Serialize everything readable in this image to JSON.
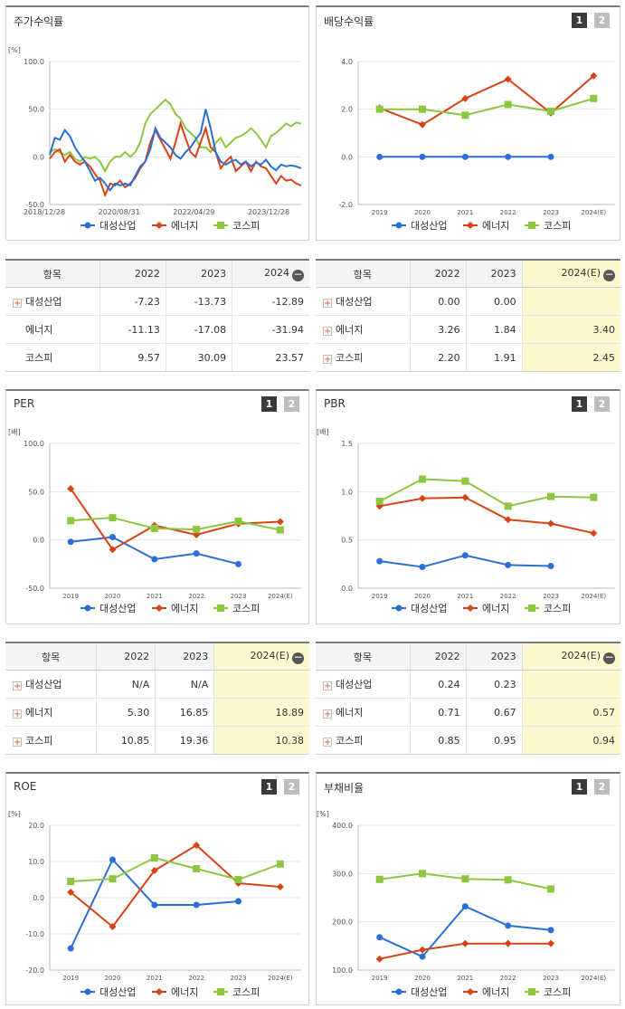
{
  "colors": {
    "company": "#2b6fd6",
    "energy": "#d84315",
    "kospi": "#8dc63f",
    "grid": "#e6e6e6",
    "axis": "#bbbbbb",
    "estimate_bg": "#fdf8d0"
  },
  "legend": {
    "company": "대성산업",
    "energy": "에너지",
    "kospi": "코스피"
  },
  "chart_data": [
    {
      "id": "stock",
      "type": "line",
      "title": "주가수익률",
      "unit": "[%]",
      "ylim": [
        -50,
        100
      ],
      "yticks": [
        "100.0",
        "50.0",
        "0.0",
        "-50.0"
      ],
      "xticks": [
        "2018/12/28",
        "2020/08/31",
        "2022/04/29",
        "2023/12/28"
      ],
      "x": [
        0,
        0.02,
        0.04,
        0.06,
        0.08,
        0.1,
        0.12,
        0.14,
        0.16,
        0.18,
        0.2,
        0.22,
        0.24,
        0.26,
        0.28,
        0.3,
        0.32,
        0.34,
        0.36,
        0.38,
        0.4,
        0.42,
        0.44,
        0.46,
        0.48,
        0.5,
        0.52,
        0.54,
        0.56,
        0.58,
        0.6,
        0.62,
        0.64,
        0.66,
        0.68,
        0.7,
        0.72,
        0.74,
        0.76,
        0.78,
        0.8,
        0.82,
        0.84,
        0.86,
        0.88,
        0.9,
        0.92,
        0.94,
        0.96,
        0.98,
        1.0
      ],
      "series": [
        {
          "name": "대성산업",
          "key": "company",
          "values": [
            2,
            20,
            18,
            28,
            22,
            10,
            2,
            -5,
            -15,
            -25,
            -22,
            -28,
            -35,
            -28,
            -30,
            -28,
            -30,
            -20,
            -10,
            -5,
            8,
            30,
            20,
            15,
            10,
            2,
            -2,
            5,
            10,
            18,
            25,
            50,
            30,
            5,
            -5,
            -8,
            -5,
            -3,
            -8,
            -5,
            -10,
            -6,
            -8,
            -3,
            -10,
            -14,
            -8,
            -10,
            -9,
            -10,
            -12
          ]
        },
        {
          "name": "에너지",
          "key": "company2",
          "color": "energy",
          "values": [
            -2,
            5,
            8,
            -5,
            2,
            -5,
            -8,
            -5,
            -10,
            -18,
            -25,
            -40,
            -28,
            -30,
            -25,
            -32,
            -28,
            -22,
            -12,
            -5,
            15,
            28,
            18,
            8,
            -2,
            15,
            35,
            20,
            5,
            0,
            15,
            30,
            10,
            5,
            -12,
            -5,
            0,
            -15,
            -10,
            -5,
            -15,
            -5,
            -10,
            -12,
            -20,
            -28,
            -20,
            -25,
            -24,
            -28,
            -30
          ]
        },
        {
          "name": "코스피",
          "key": "kospi",
          "values": [
            5,
            8,
            5,
            2,
            5,
            -2,
            -5,
            0,
            -2,
            0,
            -5,
            -15,
            -5,
            0,
            0,
            5,
            0,
            5,
            15,
            35,
            45,
            50,
            55,
            60,
            55,
            45,
            40,
            30,
            25,
            20,
            10,
            10,
            5,
            15,
            20,
            10,
            15,
            20,
            22,
            25,
            30,
            25,
            18,
            10,
            22,
            25,
            30,
            35,
            32,
            36,
            35
          ]
        }
      ]
    },
    {
      "id": "dividend",
      "type": "line",
      "title": "배당수익률",
      "unit": "",
      "ylim": [
        -2,
        4
      ],
      "yticks": [
        "4.0",
        "2.0",
        "0.0",
        "-2.0"
      ],
      "xticks": [
        "2019",
        "2020",
        "2021",
        "2022",
        "2023",
        "2024(E)"
      ],
      "series": [
        {
          "name": "대성산업",
          "key": "company",
          "values": [
            0,
            0,
            0,
            0,
            0,
            null
          ]
        },
        {
          "name": "에너지",
          "key": "energy",
          "values": [
            2.05,
            1.35,
            2.45,
            3.26,
            1.84,
            3.4
          ]
        },
        {
          "name": "코스피",
          "key": "kospi",
          "values": [
            2.0,
            2.0,
            1.75,
            2.2,
            1.91,
            2.45
          ]
        }
      ]
    },
    {
      "id": "per",
      "type": "line",
      "title": "PER",
      "unit": "[배]",
      "ylim": [
        -50,
        100
      ],
      "yticks": [
        "100.0",
        "50.0",
        "0.0",
        "-50.0"
      ],
      "xticks": [
        "2019",
        "2020",
        "2021",
        "2022",
        "2023",
        "2024(E)"
      ],
      "series": [
        {
          "name": "대성산업",
          "key": "company",
          "values": [
            -2,
            3,
            -20,
            -14,
            -25,
            null
          ]
        },
        {
          "name": "에너지",
          "key": "energy",
          "values": [
            53,
            -10,
            15,
            5.3,
            16.85,
            18.89
          ]
        },
        {
          "name": "코스피",
          "key": "kospi",
          "values": [
            20,
            23,
            12,
            10.85,
            19.36,
            10.38
          ]
        }
      ]
    },
    {
      "id": "pbr",
      "type": "line",
      "title": "PBR",
      "unit": "[배]",
      "ylim": [
        0,
        1.5
      ],
      "yticks": [
        "1.5",
        "1.0",
        "0.5",
        "0.0"
      ],
      "xticks": [
        "2019",
        "2020",
        "2021",
        "2022",
        "2023",
        "2024(E)"
      ],
      "series": [
        {
          "name": "대성산업",
          "key": "company",
          "values": [
            0.28,
            0.22,
            0.34,
            0.24,
            0.23,
            null
          ]
        },
        {
          "name": "에너지",
          "key": "energy",
          "values": [
            0.85,
            0.93,
            0.94,
            0.71,
            0.67,
            0.57
          ]
        },
        {
          "name": "코스피",
          "key": "kospi",
          "values": [
            0.9,
            1.13,
            1.11,
            0.85,
            0.95,
            0.94
          ]
        }
      ]
    },
    {
      "id": "roe",
      "type": "line",
      "title": "ROE",
      "unit": "[%]",
      "ylim": [
        -20,
        20
      ],
      "yticks": [
        "20.0",
        "10.0",
        "0.0",
        "-10.0",
        "-20.0"
      ],
      "xticks": [
        "2019",
        "2020",
        "2021",
        "2022",
        "2023",
        "2024(E)"
      ],
      "series": [
        {
          "name": "대성산업",
          "key": "company",
          "values": [
            -14,
            10.5,
            -2,
            -2,
            -1,
            null
          ]
        },
        {
          "name": "에너지",
          "key": "energy",
          "values": [
            1.5,
            -8,
            7.5,
            14.5,
            4,
            3
          ]
        },
        {
          "name": "코스피",
          "key": "kospi",
          "values": [
            4.5,
            5.2,
            11,
            8,
            5,
            9.3
          ]
        }
      ]
    },
    {
      "id": "debt",
      "type": "line",
      "title": "부채비율",
      "unit": "[%]",
      "ylim": [
        100,
        400
      ],
      "yticks": [
        "400.0",
        "300.0",
        "200.0",
        "100.0"
      ],
      "xticks": [
        "2019",
        "2020",
        "2021",
        "2022",
        "2023",
        "2024(E)"
      ],
      "series": [
        {
          "name": "대성산업",
          "key": "company",
          "values": [
            168,
            128,
            232,
            192,
            183,
            null
          ]
        },
        {
          "name": "에너지",
          "key": "energy",
          "values": [
            123,
            142,
            155,
            155,
            155,
            null
          ]
        },
        {
          "name": "코스피",
          "key": "kospi",
          "values": [
            288,
            300,
            289,
            287,
            268,
            null
          ]
        }
      ]
    }
  ],
  "tables": {
    "stock": {
      "header": [
        "항목",
        "2022",
        "2023",
        "2024"
      ],
      "rows": [
        {
          "name": "대성산업",
          "plus": true,
          "vals": [
            "-7.23",
            "-13.73",
            "-12.89"
          ]
        },
        {
          "name": "에너지",
          "plus": false,
          "vals": [
            "-11.13",
            "-17.08",
            "-31.94"
          ]
        },
        {
          "name": "코스피",
          "plus": false,
          "vals": [
            "9.57",
            "30.09",
            "23.57"
          ]
        }
      ]
    },
    "dividend": {
      "header": [
        "항목",
        "2022",
        "2023",
        "2024(E)"
      ],
      "rows": [
        {
          "name": "대성산업",
          "plus": true,
          "vals": [
            "0.00",
            "0.00",
            ""
          ]
        },
        {
          "name": "에너지",
          "plus": true,
          "vals": [
            "3.26",
            "1.84",
            "3.40"
          ]
        },
        {
          "name": "코스피",
          "plus": true,
          "vals": [
            "2.20",
            "1.91",
            "2.45"
          ]
        }
      ]
    },
    "per": {
      "header": [
        "항목",
        "2022",
        "2023",
        "2024(E)"
      ],
      "rows": [
        {
          "name": "대성산업",
          "plus": true,
          "vals": [
            "N/A",
            "N/A",
            ""
          ]
        },
        {
          "name": "에너지",
          "plus": true,
          "vals": [
            "5.30",
            "16.85",
            "18.89"
          ]
        },
        {
          "name": "코스피",
          "plus": true,
          "vals": [
            "10.85",
            "19.36",
            "10.38"
          ]
        }
      ]
    },
    "pbr": {
      "header": [
        "항목",
        "2022",
        "2023",
        "2024(E)"
      ],
      "rows": [
        {
          "name": "대성산업",
          "plus": true,
          "vals": [
            "0.24",
            "0.23",
            ""
          ]
        },
        {
          "name": "에너지",
          "plus": true,
          "vals": [
            "0.71",
            "0.67",
            "0.57"
          ]
        },
        {
          "name": "코스피",
          "plus": true,
          "vals": [
            "0.85",
            "0.95",
            "0.94"
          ]
        }
      ]
    }
  },
  "panel_buttons": {
    "one": "1",
    "two": "2"
  }
}
